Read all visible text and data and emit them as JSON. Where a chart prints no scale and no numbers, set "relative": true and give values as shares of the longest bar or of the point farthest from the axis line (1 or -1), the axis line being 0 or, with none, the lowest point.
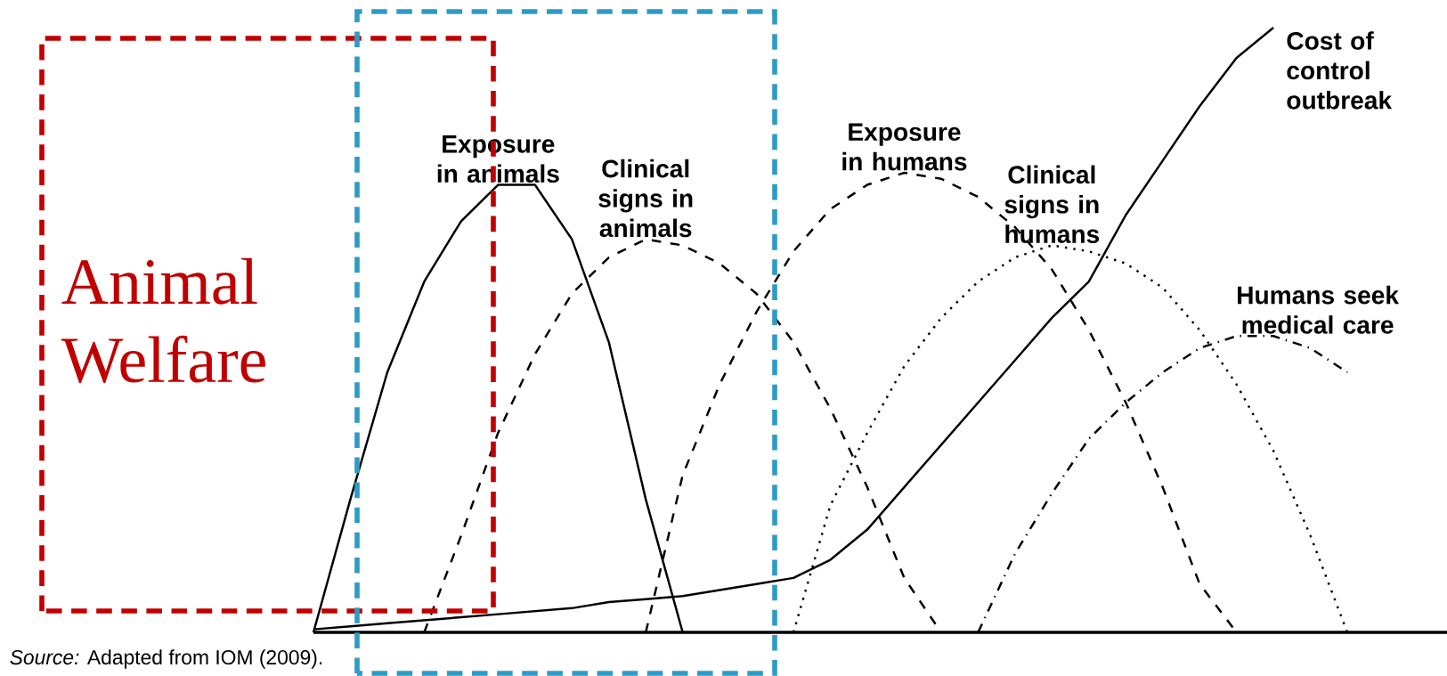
{
  "chart_data": {
    "type": "line",
    "relative": true,
    "categories": [
      null,
      null,
      null,
      null,
      null,
      null,
      null,
      null,
      null,
      null,
      null,
      null,
      null,
      null,
      null,
      null,
      null,
      null,
      null,
      null,
      null,
      null,
      null,
      null,
      null,
      null,
      null,
      null,
      null,
      null,
      null
    ],
    "series": [
      {
        "name": "Exposure in animals",
        "color": "#000000",
        "line_style": "solid",
        "values": [
          0,
          0.22,
          0.43,
          0.58,
          0.68,
          0.74,
          0.74,
          0.65,
          0.48,
          0.22,
          0,
          null,
          null,
          null,
          null,
          null,
          null,
          null,
          null,
          null,
          null,
          null,
          null,
          null,
          null,
          null,
          null,
          null,
          null,
          null,
          null
        ]
      },
      {
        "name": "Clinical signs in animals",
        "color": "#000000",
        "line_style": "dashed",
        "values": [
          null,
          null,
          null,
          0,
          0.16,
          0.33,
          0.46,
          0.56,
          0.62,
          0.65,
          0.64,
          0.61,
          0.56,
          0.48,
          0.37,
          0.24,
          0.09,
          0,
          null,
          null,
          null,
          null,
          null,
          null,
          null,
          null,
          null,
          null,
          null,
          null,
          null
        ]
      },
      {
        "name": "Exposure in humans",
        "color": "#000000",
        "line_style": "dashed",
        "values": [
          null,
          null,
          null,
          null,
          null,
          null,
          null,
          null,
          null,
          0,
          0.26,
          0.41,
          0.53,
          0.63,
          0.7,
          0.74,
          0.76,
          0.75,
          0.72,
          0.67,
          0.6,
          0.5,
          0.38,
          0.24,
          0.08,
          0,
          null,
          null,
          null,
          null,
          null
        ]
      },
      {
        "name": "Clinical signs in humans",
        "color": "#000000",
        "line_style": "dotted",
        "values": [
          null,
          null,
          null,
          null,
          null,
          null,
          null,
          null,
          null,
          null,
          null,
          null,
          null,
          0,
          0.21,
          0.33,
          0.44,
          0.52,
          0.58,
          0.62,
          0.64,
          0.63,
          0.61,
          0.57,
          0.5,
          0.41,
          0.3,
          0.16,
          0,
          null,
          null
        ]
      },
      {
        "name": "Humans seek medical care",
        "color": "#000000",
        "line_style": "dashdot",
        "values": [
          null,
          null,
          null,
          null,
          null,
          null,
          null,
          null,
          null,
          null,
          null,
          null,
          null,
          null,
          null,
          null,
          null,
          null,
          0,
          0.13,
          0.23,
          0.32,
          0.38,
          0.43,
          0.47,
          0.49,
          0.49,
          0.47,
          0.43,
          null,
          null
        ]
      },
      {
        "name": "Cost of control outbreak",
        "color": "#000000",
        "line_style": "solid",
        "values": [
          0.005,
          0.01,
          0.015,
          0.02,
          0.025,
          0.03,
          0.035,
          0.04,
          0.05,
          0.055,
          0.06,
          0.07,
          0.08,
          0.09,
          0.12,
          0.17,
          0.24,
          0.31,
          0.38,
          0.45,
          0.52,
          0.58,
          0.69,
          0.78,
          0.87,
          0.95,
          1.0,
          null,
          null,
          null,
          null
        ]
      }
    ],
    "annotations": [
      "Animal Welfare",
      "*Source:* Adapted from IOM (2009)."
    ]
  }
}
